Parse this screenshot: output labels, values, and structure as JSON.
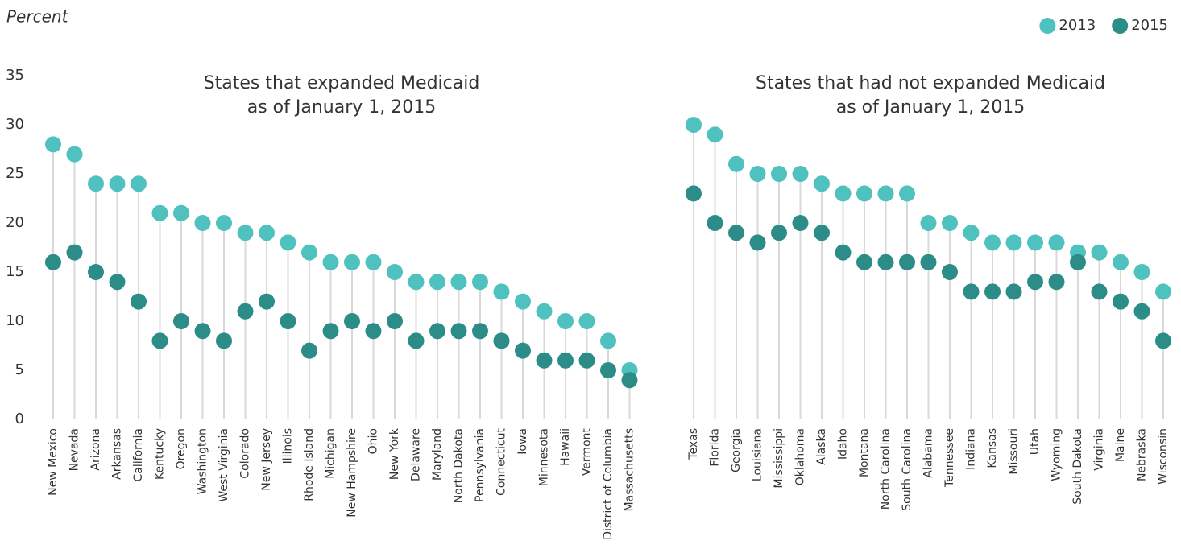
{
  "chart_data": {
    "type": "dot",
    "y_label": "Percent",
    "ylim": [
      0,
      35
    ],
    "yticks": [
      0,
      5,
      10,
      15,
      20,
      25,
      30,
      35
    ],
    "legend": "top-right",
    "titles": [
      [
        "States that expanded Medicaid",
        "as of January 1, 2015"
      ],
      [
        "States that had not expanded Medicaid",
        "as of January 1, 2015"
      ]
    ],
    "categories": [
      [
        "New Mexico",
        "Nevada",
        "Arizona",
        "Arkansas",
        "California",
        "Kentucky",
        "Oregon",
        "Washington",
        "West Virginia",
        "Colorado",
        "New Jersey",
        "Illinois",
        "Rhode Island",
        "Michigan",
        "New Hampshire",
        "Ohio",
        "New York",
        "Delaware",
        "Maryland",
        "North Dakota",
        "Pennsylvania",
        "Connecticut",
        "Iowa",
        "Minnesota",
        "Hawaii",
        "Vermont",
        "District of Columbia",
        "Massachusetts"
      ],
      [
        "Texas",
        "Florida",
        "Georgia",
        "Louisiana",
        "Mississippi",
        "Oklahoma",
        "Alaska",
        "Idaho",
        "Montana",
        "North Carolina",
        "South Carolina",
        "Alabama",
        "Tennessee",
        "Indiana",
        "Kansas",
        "Missouri",
        "Utah",
        "Wyoming",
        "South Dakota",
        "Virginia",
        "Maine",
        "Nebraska",
        "Wisconsin"
      ]
    ],
    "series": [
      {
        "name": "2013",
        "color": "#4fc1bf",
        "values": [
          [
            28,
            27,
            24,
            24,
            24,
            21,
            21,
            20,
            20,
            19,
            19,
            18,
            17,
            16,
            16,
            16,
            15,
            14,
            14,
            14,
            14,
            13,
            12,
            11,
            10,
            10,
            8,
            5
          ],
          [
            30,
            29,
            26,
            25,
            25,
            25,
            24,
            23,
            23,
            23,
            23,
            20,
            20,
            19,
            18,
            18,
            18,
            18,
            17,
            17,
            16,
            15,
            13
          ]
        ]
      },
      {
        "name": "2015",
        "color": "#2b8c88",
        "values": [
          [
            16,
            17,
            15,
            14,
            12,
            8,
            10,
            9,
            8,
            11,
            12,
            10,
            7,
            9,
            10,
            9,
            10,
            8,
            9,
            9,
            9,
            8,
            7,
            6,
            6,
            6,
            5,
            4
          ],
          [
            23,
            20,
            19,
            18,
            19,
            20,
            19,
            17,
            16,
            16,
            16,
            16,
            15,
            13,
            13,
            13,
            14,
            14,
            16,
            13,
            12,
            11,
            8
          ]
        ]
      }
    ]
  }
}
